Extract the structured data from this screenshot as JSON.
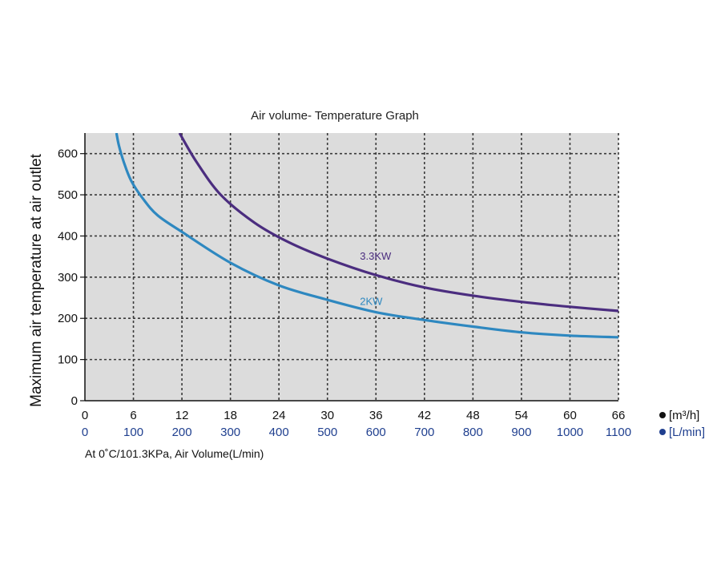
{
  "chart_data": {
    "type": "line",
    "title": "Air volume- Temperature Graph",
    "ylabel": "Maximum air temperature at air outlet",
    "xlabel": "At 0˚C/101.3KPa,  Air Volume(L/min)",
    "x_units": {
      "primary": "[m³/h]",
      "secondary": "[L/min]"
    },
    "x_ticks_m3h": [
      "0",
      "6",
      "12",
      "18",
      "24",
      "30",
      "36",
      "42",
      "48",
      "54",
      "60",
      "66"
    ],
    "x_ticks_lmin": [
      "0",
      "100",
      "200",
      "300",
      "400",
      "500",
      "600",
      "700",
      "800",
      "900",
      "1000",
      "1100"
    ],
    "y_ticks": [
      "0",
      "100",
      "200",
      "300",
      "400",
      "500",
      "600"
    ],
    "xlim": [
      0,
      1100
    ],
    "ylim": [
      0,
      650
    ],
    "grid": true,
    "series": [
      {
        "name": "3.3KW",
        "color": "#4b2d7f",
        "x": [
          195,
          230,
          280,
          350,
          420,
          500,
          600,
          700,
          800,
          900,
          1000,
          1100
        ],
        "y": [
          650,
          580,
          500,
          432,
          385,
          345,
          305,
          275,
          255,
          240,
          228,
          218
        ]
      },
      {
        "name": "2KW",
        "color": "#2e88c0",
        "x": [
          65,
          70,
          80,
          95,
          120,
          150,
          200,
          300,
          400,
          500,
          600,
          700,
          800,
          900,
          1000,
          1100
        ],
        "y": [
          650,
          620,
          580,
          535,
          490,
          450,
          410,
          335,
          280,
          245,
          215,
          196,
          180,
          166,
          158,
          154
        ]
      }
    ]
  }
}
